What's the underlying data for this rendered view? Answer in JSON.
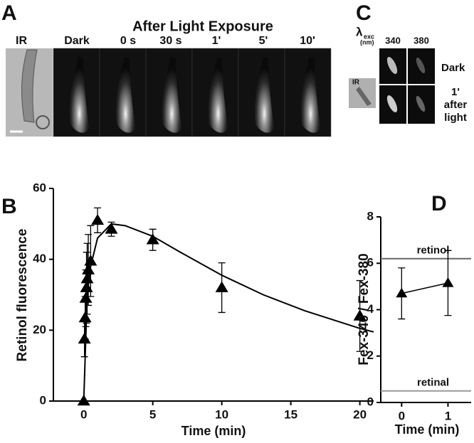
{
  "panel_labels": [
    "A",
    "B",
    "C",
    "D"
  ],
  "panel_a": {
    "header": "After Light Exposure",
    "frames": [
      "IR",
      "Dark",
      "0 s",
      "30 s",
      "1'",
      "5'",
      "10'"
    ]
  },
  "panel_c": {
    "lambda": "λ",
    "lambda_sub": "exc",
    "unit": "(nm)",
    "ir": "IR",
    "columns": [
      "340",
      "380"
    ],
    "rows": [
      [
        "Dark"
      ],
      [
        "1'",
        "after",
        "light"
      ]
    ]
  },
  "chart_data": [
    {
      "type": "scatter",
      "x_label": "Time (min)",
      "y_label": "Retinol fluorescence",
      "x": [
        0,
        0.05,
        0.1,
        0.15,
        0.2,
        0.25,
        0.33,
        0.5,
        1,
        2,
        5,
        10,
        20
      ],
      "values": [
        0,
        17.5,
        23.5,
        29,
        32,
        34.5,
        37,
        39.5,
        51,
        48.5,
        45.5,
        32,
        24
      ],
      "errors": [
        0,
        5,
        6,
        8,
        10,
        10,
        10,
        10,
        3.5,
        2,
        3,
        7,
        10
      ],
      "fit_x": [
        0,
        0.25,
        0.5,
        1,
        2,
        3,
        5,
        7,
        10,
        13,
        16,
        20,
        21
      ],
      "fit_values": [
        0,
        30,
        38,
        46,
        50,
        49.5,
        46.5,
        42,
        35.5,
        30,
        25.5,
        20.5,
        19.5
      ],
      "color": "#000000",
      "xlim": [
        -2.2,
        21
      ],
      "xticks": [
        0,
        5,
        10,
        15,
        20
      ],
      "ylim": [
        0,
        60
      ],
      "yticks": [
        0,
        20,
        40,
        60
      ]
    },
    {
      "type": "scatter",
      "x_label": "Time (min)",
      "y_label": "Fex-340 / Fex-380",
      "x": [
        0,
        1
      ],
      "values": [
        4.7,
        5.15
      ],
      "errors": [
        1.1,
        1.4
      ],
      "connect": true,
      "color": "#000000",
      "reference_lines": [
        {
          "label": "retinol",
          "value": 6.2,
          "color": "#666666"
        },
        {
          "label": "retinal",
          "value": 0.5,
          "color": "#999999"
        }
      ],
      "xlim": [
        -0.45,
        1.5
      ],
      "xticks": [
        0,
        1
      ],
      "ylim": [
        0,
        8
      ],
      "yticks": [
        0,
        2,
        4,
        6,
        8
      ]
    }
  ]
}
